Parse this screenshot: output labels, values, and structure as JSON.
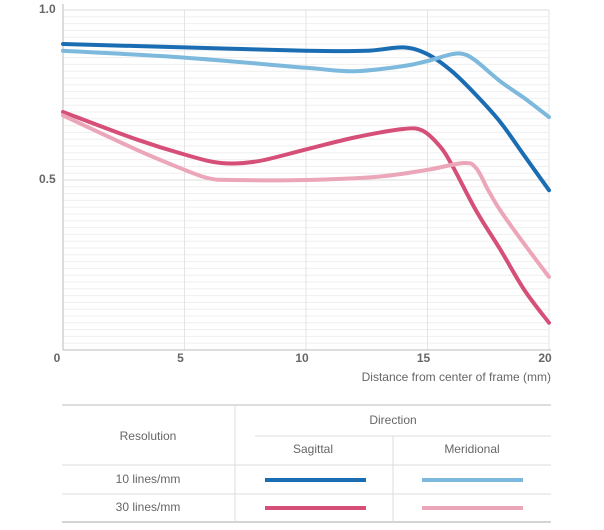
{
  "chart_data": {
    "type": "line",
    "xlim": [
      0,
      20
    ],
    "xticks": [
      0,
      5,
      10,
      15,
      20
    ],
    "ylim": [
      0,
      1
    ],
    "yticks": [
      0.5,
      {
        "value": 1,
        "label": "1.0"
      }
    ],
    "x_label": "Distance from center of frame (mm)",
    "grid": true,
    "series": [
      {
        "color": "#1b6db3",
        "x": [
          0,
          5,
          10,
          12.5,
          14,
          15,
          16,
          17,
          18,
          19,
          20
        ],
        "values": [
          0.9,
          0.89,
          0.88,
          0.88,
          0.89,
          0.87,
          0.82,
          0.75,
          0.67,
          0.57,
          0.47
        ]
      },
      {
        "color": "#7db8dd",
        "x": [
          0,
          5,
          10,
          12,
          14,
          15,
          16,
          16.5,
          17,
          18,
          19,
          20
        ],
        "values": [
          0.88,
          0.86,
          0.83,
          0.82,
          0.835,
          0.85,
          0.87,
          0.87,
          0.85,
          0.79,
          0.74,
          0.685
        ]
      },
      {
        "color": "#d54f78",
        "x": [
          0,
          3,
          5,
          6.5,
          8,
          10,
          12,
          14,
          14.8,
          15.5,
          16,
          17,
          18,
          19,
          20
        ],
        "values": [
          0.7,
          0.62,
          0.575,
          0.55,
          0.555,
          0.59,
          0.625,
          0.65,
          0.645,
          0.6,
          0.545,
          0.41,
          0.295,
          0.175,
          0.08
        ]
      },
      {
        "color": "#eca6b9",
        "x": [
          0,
          3,
          5,
          6,
          7,
          10,
          13,
          15,
          16.5,
          17,
          17.5,
          18,
          19,
          20
        ],
        "values": [
          0.69,
          0.59,
          0.53,
          0.505,
          0.5,
          0.5,
          0.51,
          0.53,
          0.55,
          0.535,
          0.47,
          0.41,
          0.31,
          0.215
        ]
      }
    ]
  },
  "legend_table": {
    "title": "Direction",
    "row_header": "Resolution",
    "columns": [
      "Sagittal",
      "Meridional"
    ],
    "rows": [
      "10 lines/mm",
      "30 lines/mm"
    ]
  }
}
